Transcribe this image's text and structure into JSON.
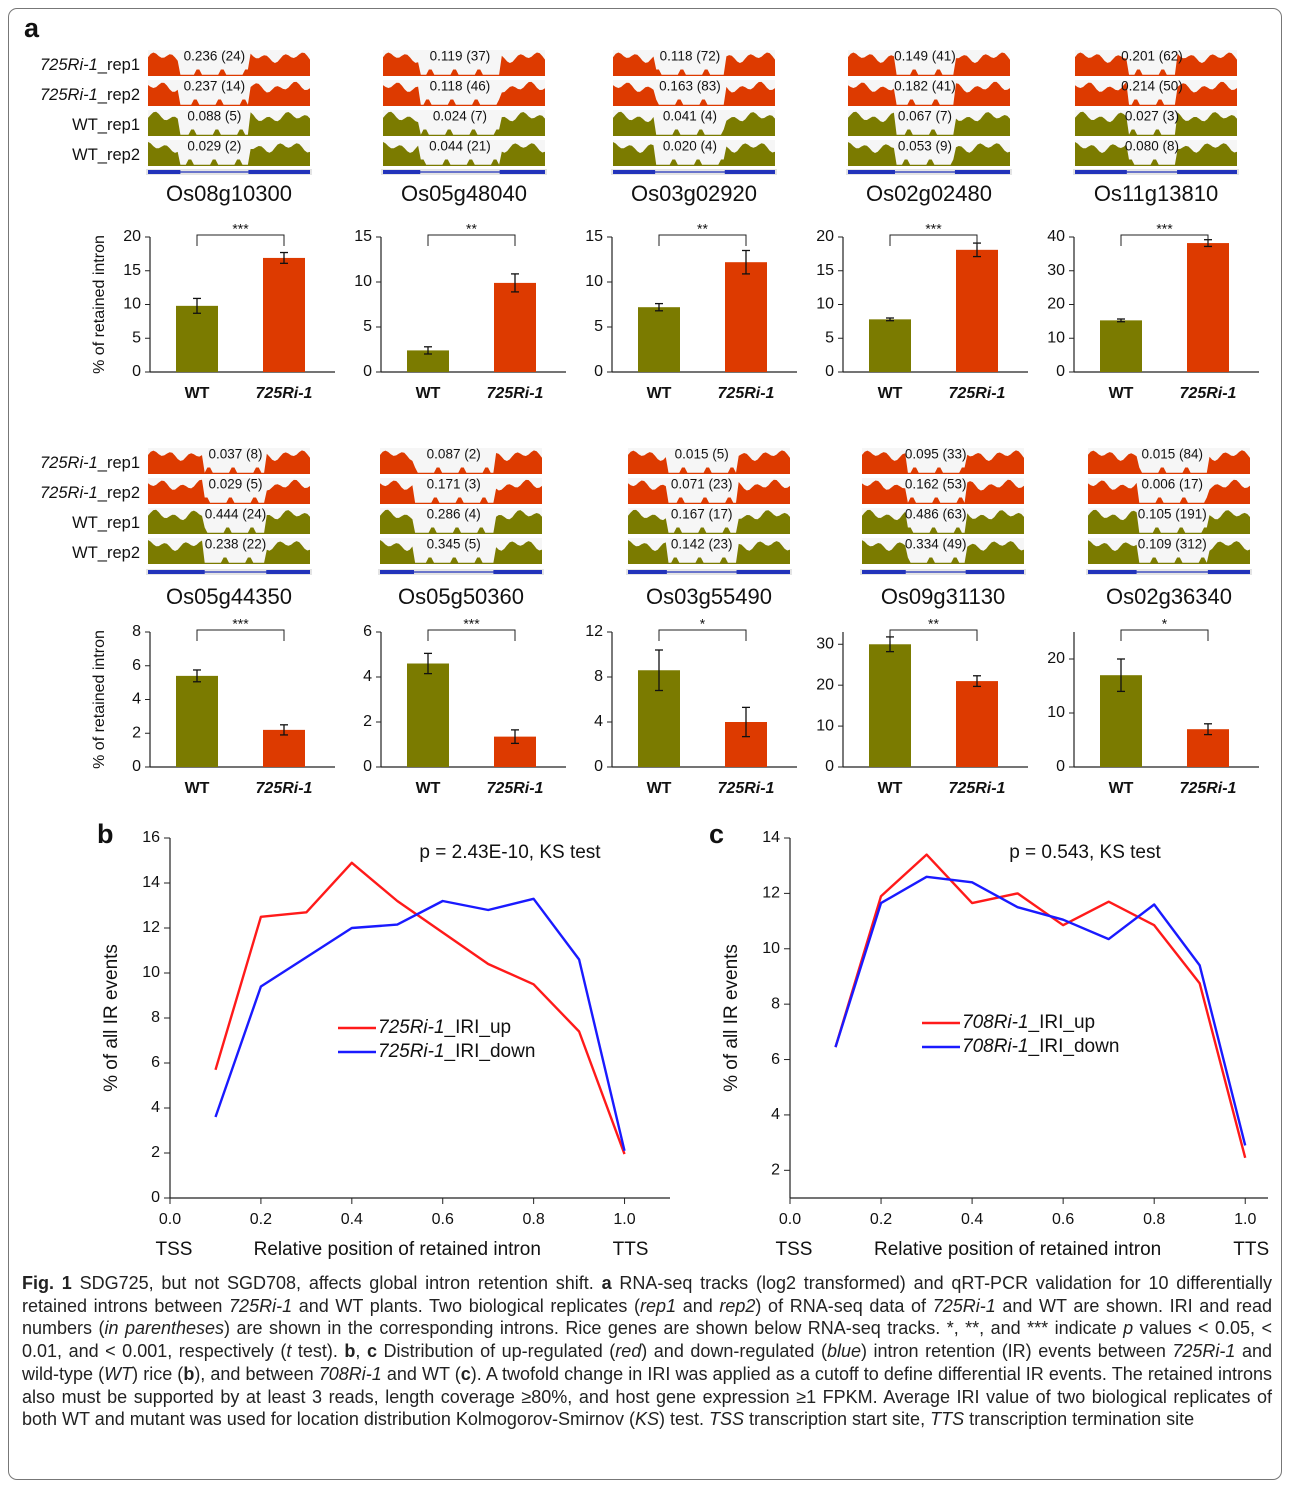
{
  "panel_labels": [
    "a",
    "b",
    "c"
  ],
  "tracks": {
    "row_labels": [
      "725Ri-1_rep1",
      "725Ri-1_rep2",
      "WT_rep1",
      "WT_rep2"
    ],
    "genes": [
      {
        "name": "Os08g10300",
        "labels": [
          "0.236 (24)",
          "0.237 (14)",
          "0.088 (5)",
          "0.029 (2)"
        ]
      },
      {
        "name": "Os05g48040",
        "labels": [
          "0.119 (37)",
          "0.118 (46)",
          "0.024 (7)",
          "0.044 (21)"
        ]
      },
      {
        "name": "Os03g02920",
        "labels": [
          "0.118 (72)",
          "0.163 (83)",
          "0.041 (4)",
          "0.020 (4)"
        ]
      },
      {
        "name": "Os02g02480",
        "labels": [
          "0.149 (41)",
          "0.182 (41)",
          "0.067 (7)",
          "0.053 (9)"
        ]
      },
      {
        "name": "Os11g13810",
        "labels": [
          "0.201 (62)",
          "0.214 (50)",
          "0.027 (3)",
          "0.080 (8)"
        ]
      },
      {
        "name": "Os05g44350",
        "labels": [
          "0.037 (8)",
          "0.029 (5)",
          "0.444 (24)",
          "0.238 (22)"
        ]
      },
      {
        "name": "Os05g50360",
        "labels": [
          "0.087 (2)",
          "0.171 (3)",
          "0.286 (4)",
          "0.345 (5)"
        ]
      },
      {
        "name": "Os03g55490",
        "labels": [
          "0.015 (5)",
          "0.071 (23)",
          "0.167 (17)",
          "0.142 (23)"
        ]
      },
      {
        "name": "Os09g31130",
        "labels": [
          "0.095 (33)",
          "0.162 (53)",
          "0.486 (63)",
          "0.334 (49)"
        ]
      },
      {
        "name": "Os02g36340",
        "labels": [
          "0.015 (84)",
          "0.006 (17)",
          "0.105 (191)",
          "0.109 (312)"
        ]
      }
    ]
  },
  "chart_data": [
    {
      "type": "bar",
      "ylabel": "% of retained intron",
      "categories": [
        "WT",
        "725Ri-1"
      ],
      "values": [
        9.8,
        16.9
      ],
      "errors": [
        1.1,
        0.8
      ],
      "colors": [
        "#7b7b00",
        "#dd3a00"
      ],
      "ylim": [
        0,
        20
      ],
      "yticks": [
        0,
        5,
        10,
        15,
        20
      ],
      "significance": "***"
    },
    {
      "type": "bar",
      "categories": [
        "WT",
        "725Ri-1"
      ],
      "values": [
        2.4,
        9.9
      ],
      "errors": [
        0.4,
        1.0
      ],
      "colors": [
        "#7b7b00",
        "#dd3a00"
      ],
      "ylim": [
        0,
        15
      ],
      "yticks": [
        0,
        5,
        10,
        15
      ],
      "significance": "**"
    },
    {
      "type": "bar",
      "categories": [
        "WT",
        "725Ri-1"
      ],
      "values": [
        7.2,
        12.2
      ],
      "errors": [
        0.4,
        1.3
      ],
      "colors": [
        "#7b7b00",
        "#dd3a00"
      ],
      "ylim": [
        0,
        15
      ],
      "yticks": [
        0,
        5,
        10,
        15
      ],
      "significance": "**"
    },
    {
      "type": "bar",
      "categories": [
        "WT",
        "725Ri-1"
      ],
      "values": [
        7.8,
        18.1
      ],
      "errors": [
        0.2,
        1.0
      ],
      "colors": [
        "#7b7b00",
        "#dd3a00"
      ],
      "ylim": [
        0,
        20
      ],
      "yticks": [
        0,
        5,
        10,
        15,
        20
      ],
      "significance": "***"
    },
    {
      "type": "bar",
      "categories": [
        "WT",
        "725Ri-1"
      ],
      "values": [
        15.3,
        38.2
      ],
      "errors": [
        0.4,
        1.0
      ],
      "colors": [
        "#7b7b00",
        "#dd3a00"
      ],
      "ylim": [
        0,
        40
      ],
      "yticks": [
        0,
        10,
        20,
        30,
        40
      ],
      "significance": "***"
    },
    {
      "type": "bar",
      "ylabel": "% of retained intron",
      "categories": [
        "WT",
        "725Ri-1"
      ],
      "values": [
        5.4,
        2.2
      ],
      "errors": [
        0.35,
        0.3
      ],
      "colors": [
        "#7b7b00",
        "#dd3a00"
      ],
      "ylim": [
        0,
        8
      ],
      "yticks": [
        0,
        2,
        4,
        6,
        8
      ],
      "significance": "***"
    },
    {
      "type": "bar",
      "categories": [
        "WT",
        "725Ri-1"
      ],
      "values": [
        4.6,
        1.35
      ],
      "errors": [
        0.45,
        0.3
      ],
      "colors": [
        "#7b7b00",
        "#dd3a00"
      ],
      "ylim": [
        0,
        6
      ],
      "yticks": [
        0,
        2,
        4,
        6
      ],
      "significance": "***"
    },
    {
      "type": "bar",
      "categories": [
        "WT",
        "725Ri-1"
      ],
      "values": [
        8.6,
        4.0
      ],
      "errors": [
        1.8,
        1.3
      ],
      "colors": [
        "#7b7b00",
        "#dd3a00"
      ],
      "ylim": [
        0,
        12
      ],
      "yticks": [
        0,
        4,
        8,
        12
      ],
      "significance": "*"
    },
    {
      "type": "bar",
      "categories": [
        "WT",
        "725Ri-1"
      ],
      "values": [
        30,
        21
      ],
      "errors": [
        1.8,
        1.3
      ],
      "colors": [
        "#7b7b00",
        "#dd3a00"
      ],
      "ylim": [
        0,
        33
      ],
      "yticks": [
        0,
        10,
        20,
        30
      ],
      "significance": "**"
    },
    {
      "type": "bar",
      "categories": [
        "WT",
        "725Ri-1"
      ],
      "values": [
        17,
        7
      ],
      "errors": [
        3,
        1
      ],
      "colors": [
        "#7b7b00",
        "#dd3a00"
      ],
      "ylim": [
        0,
        25
      ],
      "yticks": [
        0,
        10,
        20
      ],
      "significance": "*"
    },
    {
      "type": "line",
      "annotation": "p = 2.43E-10, KS test",
      "xlabel": "Relative position of retained intron",
      "ylabel": "% of all IR events",
      "start_label": "TSS",
      "end_label": "TTS",
      "x": [
        0.1,
        0.2,
        0.3,
        0.4,
        0.5,
        0.6,
        0.7,
        0.8,
        0.9,
        1.0
      ],
      "series": [
        {
          "name": "725Ri-1_IRI_up",
          "color": "#ff1a1a",
          "values": [
            5.7,
            12.5,
            12.7,
            14.9,
            13.2,
            11.8,
            10.4,
            9.5,
            7.4,
            1.95
          ]
        },
        {
          "name": "725Ri-1_IRI_down",
          "color": "#1a1aff",
          "values": [
            3.6,
            9.4,
            10.7,
            12.0,
            12.15,
            13.2,
            12.8,
            13.3,
            10.6,
            2.1
          ]
        }
      ],
      "xlim": [
        0,
        1.1
      ],
      "ylim": [
        0,
        16
      ],
      "xticks": [
        {
          "value": 0,
          "label": "0.0"
        },
        0.2,
        0.4,
        0.6,
        0.8,
        {
          "value": 1,
          "label": "1.0"
        }
      ],
      "yticks": [
        0,
        2,
        4,
        6,
        8,
        10,
        12,
        14,
        16
      ]
    },
    {
      "type": "line",
      "annotation": "p = 0.543, KS test",
      "xlabel": "Relative position of retained intron",
      "ylabel": "% of all IR events",
      "start_label": "TSS",
      "end_label": "TTS",
      "x": [
        0.1,
        0.2,
        0.3,
        0.4,
        0.5,
        0.6,
        0.7,
        0.8,
        0.9,
        1.0
      ],
      "series": [
        {
          "name": "708Ri-1_IRI_up",
          "color": "#ff1a1a",
          "values": [
            6.45,
            11.9,
            13.4,
            11.65,
            12.0,
            10.85,
            11.7,
            10.85,
            8.75,
            2.45
          ]
        },
        {
          "name": "708Ri-1_IRI_down",
          "color": "#1a1aff",
          "values": [
            6.45,
            11.65,
            12.6,
            12.4,
            11.5,
            11.05,
            10.35,
            11.6,
            9.4,
            2.9
          ]
        }
      ],
      "xlim": [
        0,
        1.05
      ],
      "ylim": [
        1,
        14
      ],
      "xticks": [
        {
          "value": 0,
          "label": "0.0"
        },
        0.2,
        0.4,
        0.6,
        0.8,
        {
          "value": 1,
          "label": "1.0"
        }
      ],
      "yticks": [
        2,
        4,
        6,
        8,
        10,
        12,
        14
      ]
    }
  ],
  "caption": [
    {
      "text": "Fig. 1",
      "bold": true
    },
    {
      "text": " SDG725, but not SGD708, affects global intron retention shift. "
    },
    {
      "text": "a",
      "bold": true
    },
    {
      "text": " RNA-seq tracks (log2 transformed) and qRT-PCR validation for 10 differentially retained introns between "
    },
    {
      "text": "725Ri-1",
      "italic": true
    },
    {
      "text": " and WT plants. Two biological replicates ("
    },
    {
      "text": "rep1",
      "italic": true
    },
    {
      "text": " and "
    },
    {
      "text": "rep2",
      "italic": true
    },
    {
      "text": ") of RNA-seq data of "
    },
    {
      "text": "725Ri-1",
      "italic": true
    },
    {
      "text": " and WT are shown. IRI and read numbers ("
    },
    {
      "text": "in parentheses",
      "italic": true
    },
    {
      "text": ") are shown in the corresponding introns. Rice genes are shown below RNA-seq tracks. *, **, and *** indicate "
    },
    {
      "text": "p",
      "italic": true
    },
    {
      "text": " values < 0.05, < 0.01, and < 0.001, respectively ("
    },
    {
      "text": "t",
      "italic": true
    },
    {
      "text": " test). "
    },
    {
      "text": "b",
      "bold": true
    },
    {
      "text": ", "
    },
    {
      "text": "c",
      "bold": true
    },
    {
      "text": " Distribution of up-regulated ("
    },
    {
      "text": "red",
      "italic": true
    },
    {
      "text": ") and down-regulated ("
    },
    {
      "text": "blue",
      "italic": true
    },
    {
      "text": ") intron retention (IR) events between "
    },
    {
      "text": "725Ri-1",
      "italic": true
    },
    {
      "text": " and wild-type ("
    },
    {
      "text": "WT",
      "italic": true
    },
    {
      "text": ") rice ("
    },
    {
      "text": "b",
      "bold": true
    },
    {
      "text": "), and between "
    },
    {
      "text": "708Ri-1",
      "italic": true
    },
    {
      "text": " and WT ("
    },
    {
      "text": "c",
      "bold": true
    },
    {
      "text": "). A twofold change in IRI was applied as a cutoff to define differential IR events. The retained introns also must be supported by at least 3 reads, length coverage ≥80%, and host gene expression ≥1 FPKM. Average IRI value of two biological replicates of both WT and mutant was used for location distribution Kolmogorov-Smirnov ("
    },
    {
      "text": "KS",
      "italic": true
    },
    {
      "text": ") test. "
    },
    {
      "text": "TSS",
      "italic": true
    },
    {
      "text": " transcription start site, "
    },
    {
      "text": "TTS",
      "italic": true
    },
    {
      "text": " transcription termination site"
    }
  ]
}
